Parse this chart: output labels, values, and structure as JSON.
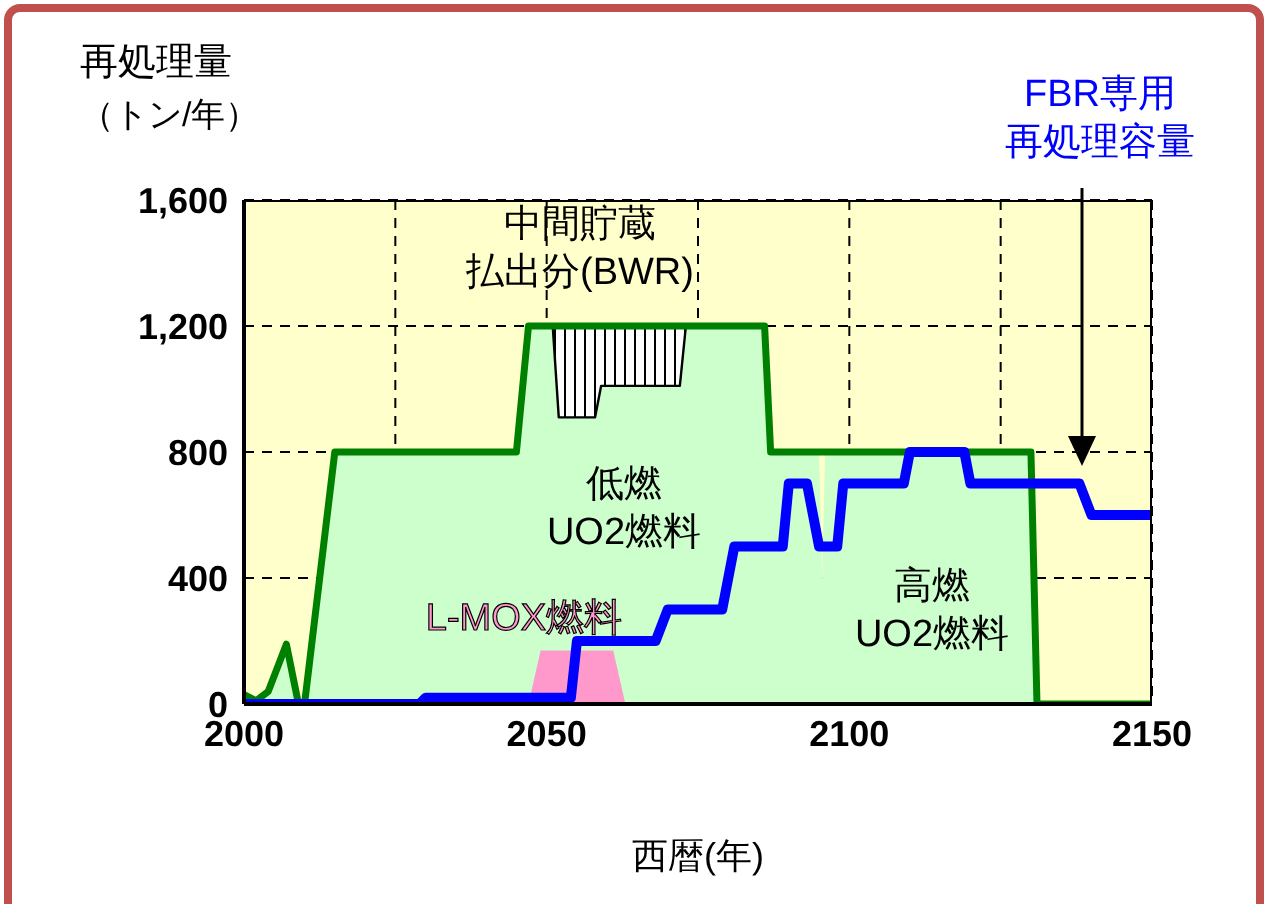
{
  "chart_data": {
    "type": "area",
    "xlabel": "西暦(年)",
    "ylabel": "再処理量（トン/年）",
    "series": [
      {
        "name": "低燃UO2燃料",
        "color": "#ccffcc",
        "x": [
          2000,
          2002,
          2004,
          2007,
          2009,
          2010,
          2015,
          2045,
          2047,
          2086,
          2087,
          2095,
          2096
        ],
        "values": [
          30,
          10,
          40,
          190,
          0,
          0,
          800,
          800,
          1200,
          1200,
          800,
          800,
          0
        ]
      },
      {
        "name": "高燃UO2燃料",
        "color": "#ccffcc",
        "x": [
          2095,
          2096,
          2130,
          2131
        ],
        "values": [
          0,
          800,
          800,
          0
        ]
      },
      {
        "name": "L-MOX燃料",
        "color": "#ff99cc",
        "x": [
          2047,
          2049,
          2061,
          2063
        ],
        "values": [
          0,
          170,
          170,
          0
        ]
      },
      {
        "name": "中間貯蔵払出分(BWR)",
        "type": "line",
        "color": "#000000",
        "x": [
          2051,
          2052,
          2058,
          2059,
          2072,
          2073
        ],
        "values": [
          1200,
          910,
          910,
          1010,
          1010,
          1200
        ],
        "lower": [
          1200,
          910,
          910,
          1010,
          1010,
          1200
        ],
        "upper": [
          1200,
          1200,
          1200,
          1200,
          1200,
          1200
        ]
      },
      {
        "type": "line",
        "color": "#008000",
        "x": [
          2000,
          2002,
          2004,
          2007,
          2009,
          2010,
          2015,
          2045,
          2047,
          2086,
          2087,
          2130,
          2131,
          2150
        ],
        "values": [
          30,
          10,
          40,
          190,
          0,
          0,
          800,
          800,
          1200,
          1200,
          800,
          800,
          0,
          0
        ]
      },
      {
        "name": "FBR専用再処理容量",
        "type": "line",
        "color": "#0000ff",
        "x": [
          2000,
          2029,
          2030,
          2054,
          2055,
          2068,
          2070,
          2079,
          2081,
          2089,
          2090,
          2093,
          2095,
          2098,
          2099,
          2109,
          2110,
          2119,
          2120,
          2138,
          2140,
          2150
        ],
        "values": [
          0,
          0,
          20,
          20,
          200,
          200,
          300,
          300,
          500,
          500,
          700,
          700,
          500,
          500,
          700,
          700,
          800,
          800,
          700,
          700,
          600,
          600
        ]
      }
    ],
    "xlim": [
      2000,
      2150
    ],
    "xticks": [
      2000,
      {
        "value": 2025,
        "label": null
      },
      2050,
      {
        "value": 2075,
        "label": null
      },
      2100,
      {
        "value": 2125,
        "label": null
      },
      2150
    ],
    "ylim": [
      0,
      1600
    ],
    "yticks": [
      0,
      400,
      800,
      {
        "value": 1200,
        "label": "1,200"
      },
      {
        "value": 1600,
        "label": "1,600"
      }
    ],
    "grid": true
  }
}
